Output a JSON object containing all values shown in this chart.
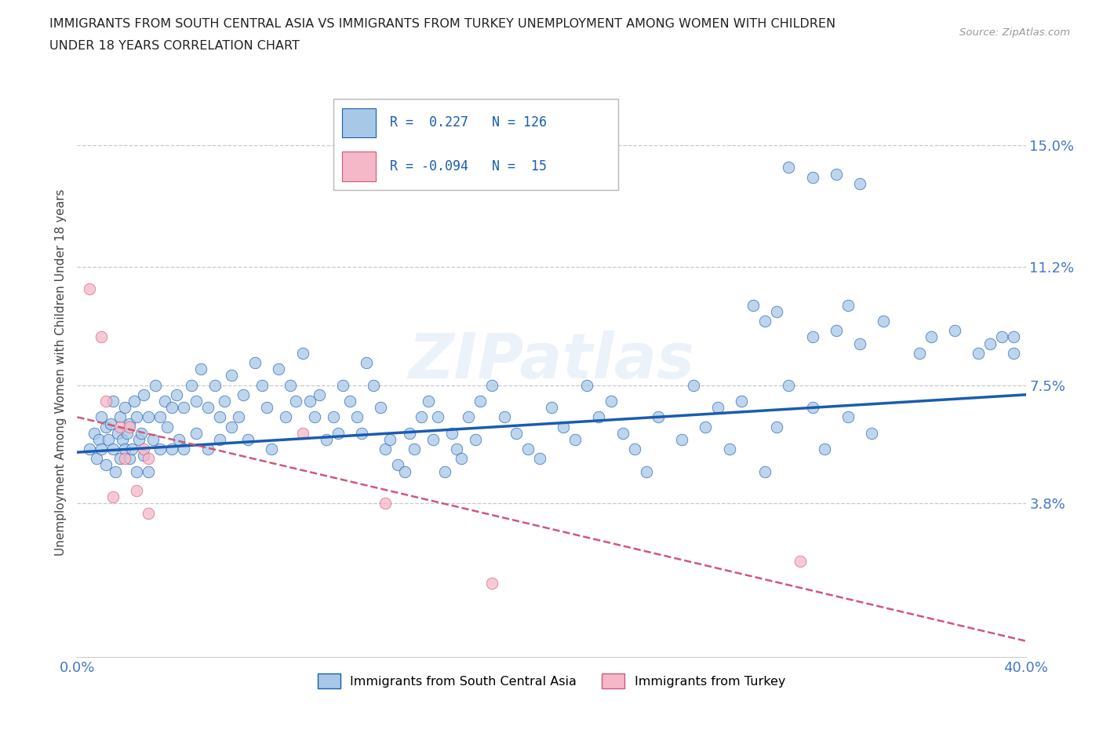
{
  "title_line1": "IMMIGRANTS FROM SOUTH CENTRAL ASIA VS IMMIGRANTS FROM TURKEY UNEMPLOYMENT AMONG WOMEN WITH CHILDREN",
  "title_line2": "UNDER 18 YEARS CORRELATION CHART",
  "source": "Source: ZipAtlas.com",
  "ylabel": "Unemployment Among Women with Children Under 18 years",
  "xlim": [
    0.0,
    0.4
  ],
  "ylim": [
    -0.01,
    0.168
  ],
  "yticks": [
    0.038,
    0.075,
    0.112,
    0.15
  ],
  "ytick_labels": [
    "3.8%",
    "7.5%",
    "11.2%",
    "15.0%"
  ],
  "xticks": [
    0.0,
    0.1,
    0.2,
    0.3,
    0.4
  ],
  "xtick_labels": [
    "0.0%",
    "",
    "",
    "",
    "40.0%"
  ],
  "color_asia": "#a8c8e8",
  "color_turkey": "#f5b8c8",
  "color_asia_line": "#1a5cb0",
  "color_turkey_line": "#d05878",
  "R_asia": 0.227,
  "N_asia": 126,
  "R_turkey": -0.094,
  "N_turkey": 15,
  "legend_label_asia": "Immigrants from South Central Asia",
  "legend_label_turkey": "Immigrants from Turkey",
  "background_color": "#ffffff",
  "grid_color": "#c8c8d0",
  "title_color": "#222222",
  "source_color": "#999999",
  "axis_label_color": "#444444",
  "tick_color": "#4477cc",
  "watermark": "ZIPatlas",
  "asia_x": [
    0.005,
    0.007,
    0.008,
    0.009,
    0.01,
    0.01,
    0.012,
    0.012,
    0.013,
    0.014,
    0.015,
    0.015,
    0.016,
    0.017,
    0.018,
    0.018,
    0.019,
    0.02,
    0.02,
    0.021,
    0.022,
    0.022,
    0.023,
    0.024,
    0.025,
    0.025,
    0.026,
    0.027,
    0.028,
    0.028,
    0.03,
    0.03,
    0.032,
    0.033,
    0.035,
    0.035,
    0.037,
    0.038,
    0.04,
    0.04,
    0.042,
    0.043,
    0.045,
    0.045,
    0.048,
    0.05,
    0.05,
    0.052,
    0.055,
    0.055,
    0.058,
    0.06,
    0.06,
    0.062,
    0.065,
    0.065,
    0.068,
    0.07,
    0.072,
    0.075,
    0.078,
    0.08,
    0.082,
    0.085,
    0.088,
    0.09,
    0.092,
    0.095,
    0.098,
    0.1,
    0.102,
    0.105,
    0.108,
    0.11,
    0.112,
    0.115,
    0.118,
    0.12,
    0.122,
    0.125,
    0.128,
    0.13,
    0.132,
    0.135,
    0.138,
    0.14,
    0.142,
    0.145,
    0.148,
    0.15,
    0.152,
    0.155,
    0.158,
    0.16,
    0.162,
    0.165,
    0.168,
    0.17,
    0.175,
    0.18,
    0.185,
    0.19,
    0.195,
    0.2,
    0.205,
    0.21,
    0.215,
    0.22,
    0.225,
    0.23,
    0.235,
    0.24,
    0.245,
    0.255,
    0.26,
    0.265,
    0.27,
    0.275,
    0.28,
    0.29,
    0.295,
    0.3,
    0.31,
    0.315,
    0.325,
    0.335
  ],
  "asia_y": [
    0.055,
    0.06,
    0.052,
    0.058,
    0.065,
    0.055,
    0.062,
    0.05,
    0.058,
    0.063,
    0.055,
    0.07,
    0.048,
    0.06,
    0.065,
    0.052,
    0.058,
    0.068,
    0.055,
    0.06,
    0.052,
    0.063,
    0.055,
    0.07,
    0.065,
    0.048,
    0.058,
    0.06,
    0.053,
    0.072,
    0.065,
    0.048,
    0.058,
    0.075,
    0.065,
    0.055,
    0.07,
    0.062,
    0.055,
    0.068,
    0.072,
    0.058,
    0.068,
    0.055,
    0.075,
    0.07,
    0.06,
    0.08,
    0.068,
    0.055,
    0.075,
    0.065,
    0.058,
    0.07,
    0.062,
    0.078,
    0.065,
    0.072,
    0.058,
    0.082,
    0.075,
    0.068,
    0.055,
    0.08,
    0.065,
    0.075,
    0.07,
    0.085,
    0.07,
    0.065,
    0.072,
    0.058,
    0.065,
    0.06,
    0.075,
    0.07,
    0.065,
    0.06,
    0.082,
    0.075,
    0.068,
    0.055,
    0.058,
    0.05,
    0.048,
    0.06,
    0.055,
    0.065,
    0.07,
    0.058,
    0.065,
    0.048,
    0.06,
    0.055,
    0.052,
    0.065,
    0.058,
    0.07,
    0.075,
    0.065,
    0.06,
    0.055,
    0.052,
    0.068,
    0.062,
    0.058,
    0.075,
    0.065,
    0.07,
    0.06,
    0.055,
    0.048,
    0.065,
    0.058,
    0.075,
    0.062,
    0.068,
    0.055,
    0.07,
    0.048,
    0.062,
    0.075,
    0.068,
    0.055,
    0.065,
    0.06
  ],
  "asia_x_high": [
    0.285,
    0.29,
    0.295,
    0.31,
    0.32,
    0.325,
    0.33,
    0.34,
    0.355,
    0.36,
    0.37,
    0.38,
    0.385,
    0.39,
    0.395,
    0.395,
    0.3,
    0.31,
    0.32,
    0.33
  ],
  "asia_y_high": [
    0.1,
    0.095,
    0.098,
    0.09,
    0.092,
    0.1,
    0.088,
    0.095,
    0.085,
    0.09,
    0.092,
    0.085,
    0.088,
    0.09,
    0.085,
    0.09,
    0.143,
    0.14,
    0.141,
    0.138
  ],
  "turkey_x": [
    0.005,
    0.01,
    0.012,
    0.015,
    0.018,
    0.02,
    0.022,
    0.025,
    0.028,
    0.03,
    0.03,
    0.095,
    0.13,
    0.175,
    0.305
  ],
  "turkey_y": [
    0.105,
    0.09,
    0.07,
    0.04,
    0.062,
    0.052,
    0.062,
    0.042,
    0.055,
    0.035,
    0.052,
    0.06,
    0.038,
    0.013,
    0.02
  ]
}
